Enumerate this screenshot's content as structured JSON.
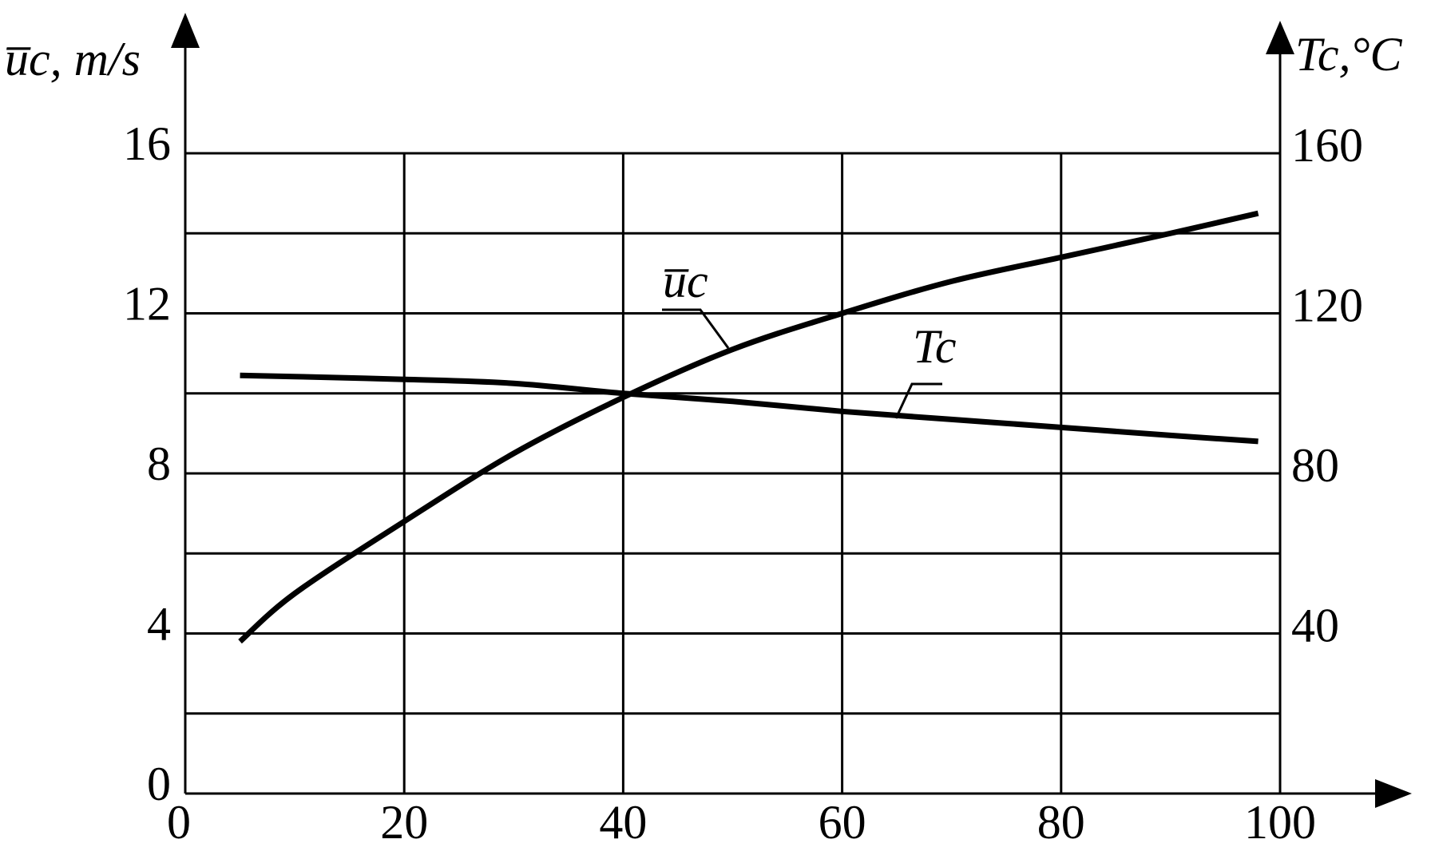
{
  "chart_data": {
    "type": "line",
    "ylabel": "u̅c, m/s",
    "y2label": "Tc,°C",
    "x": [
      5,
      10,
      20,
      30,
      40,
      50,
      60,
      70,
      80,
      90,
      98
    ],
    "series": [
      {
        "name": "u̅c",
        "color": "#000000",
        "values": [
          3.8,
          5.0,
          6.8,
          8.5,
          9.9,
          11.1,
          12.0,
          12.8,
          13.4,
          14.0,
          14.5
        ]
      },
      {
        "name": "Tc",
        "color": "#000000",
        "axis": "y2",
        "values": [
          104.5,
          104.2,
          103.5,
          102.5,
          100,
          98,
          95.5,
          93.5,
          91.5,
          89.5,
          88
        ]
      }
    ],
    "xlim": [
      0,
      100
    ],
    "xticks": [
      0,
      20,
      40,
      60,
      80,
      100
    ],
    "ylim": [
      0,
      16
    ],
    "yticks": [
      0,
      4,
      8,
      12,
      16
    ],
    "yminorticks": [
      2,
      6,
      10,
      14
    ],
    "y2lim": [
      0,
      160
    ],
    "y2ticks": [
      40,
      80,
      120,
      160
    ],
    "grid": true
  }
}
